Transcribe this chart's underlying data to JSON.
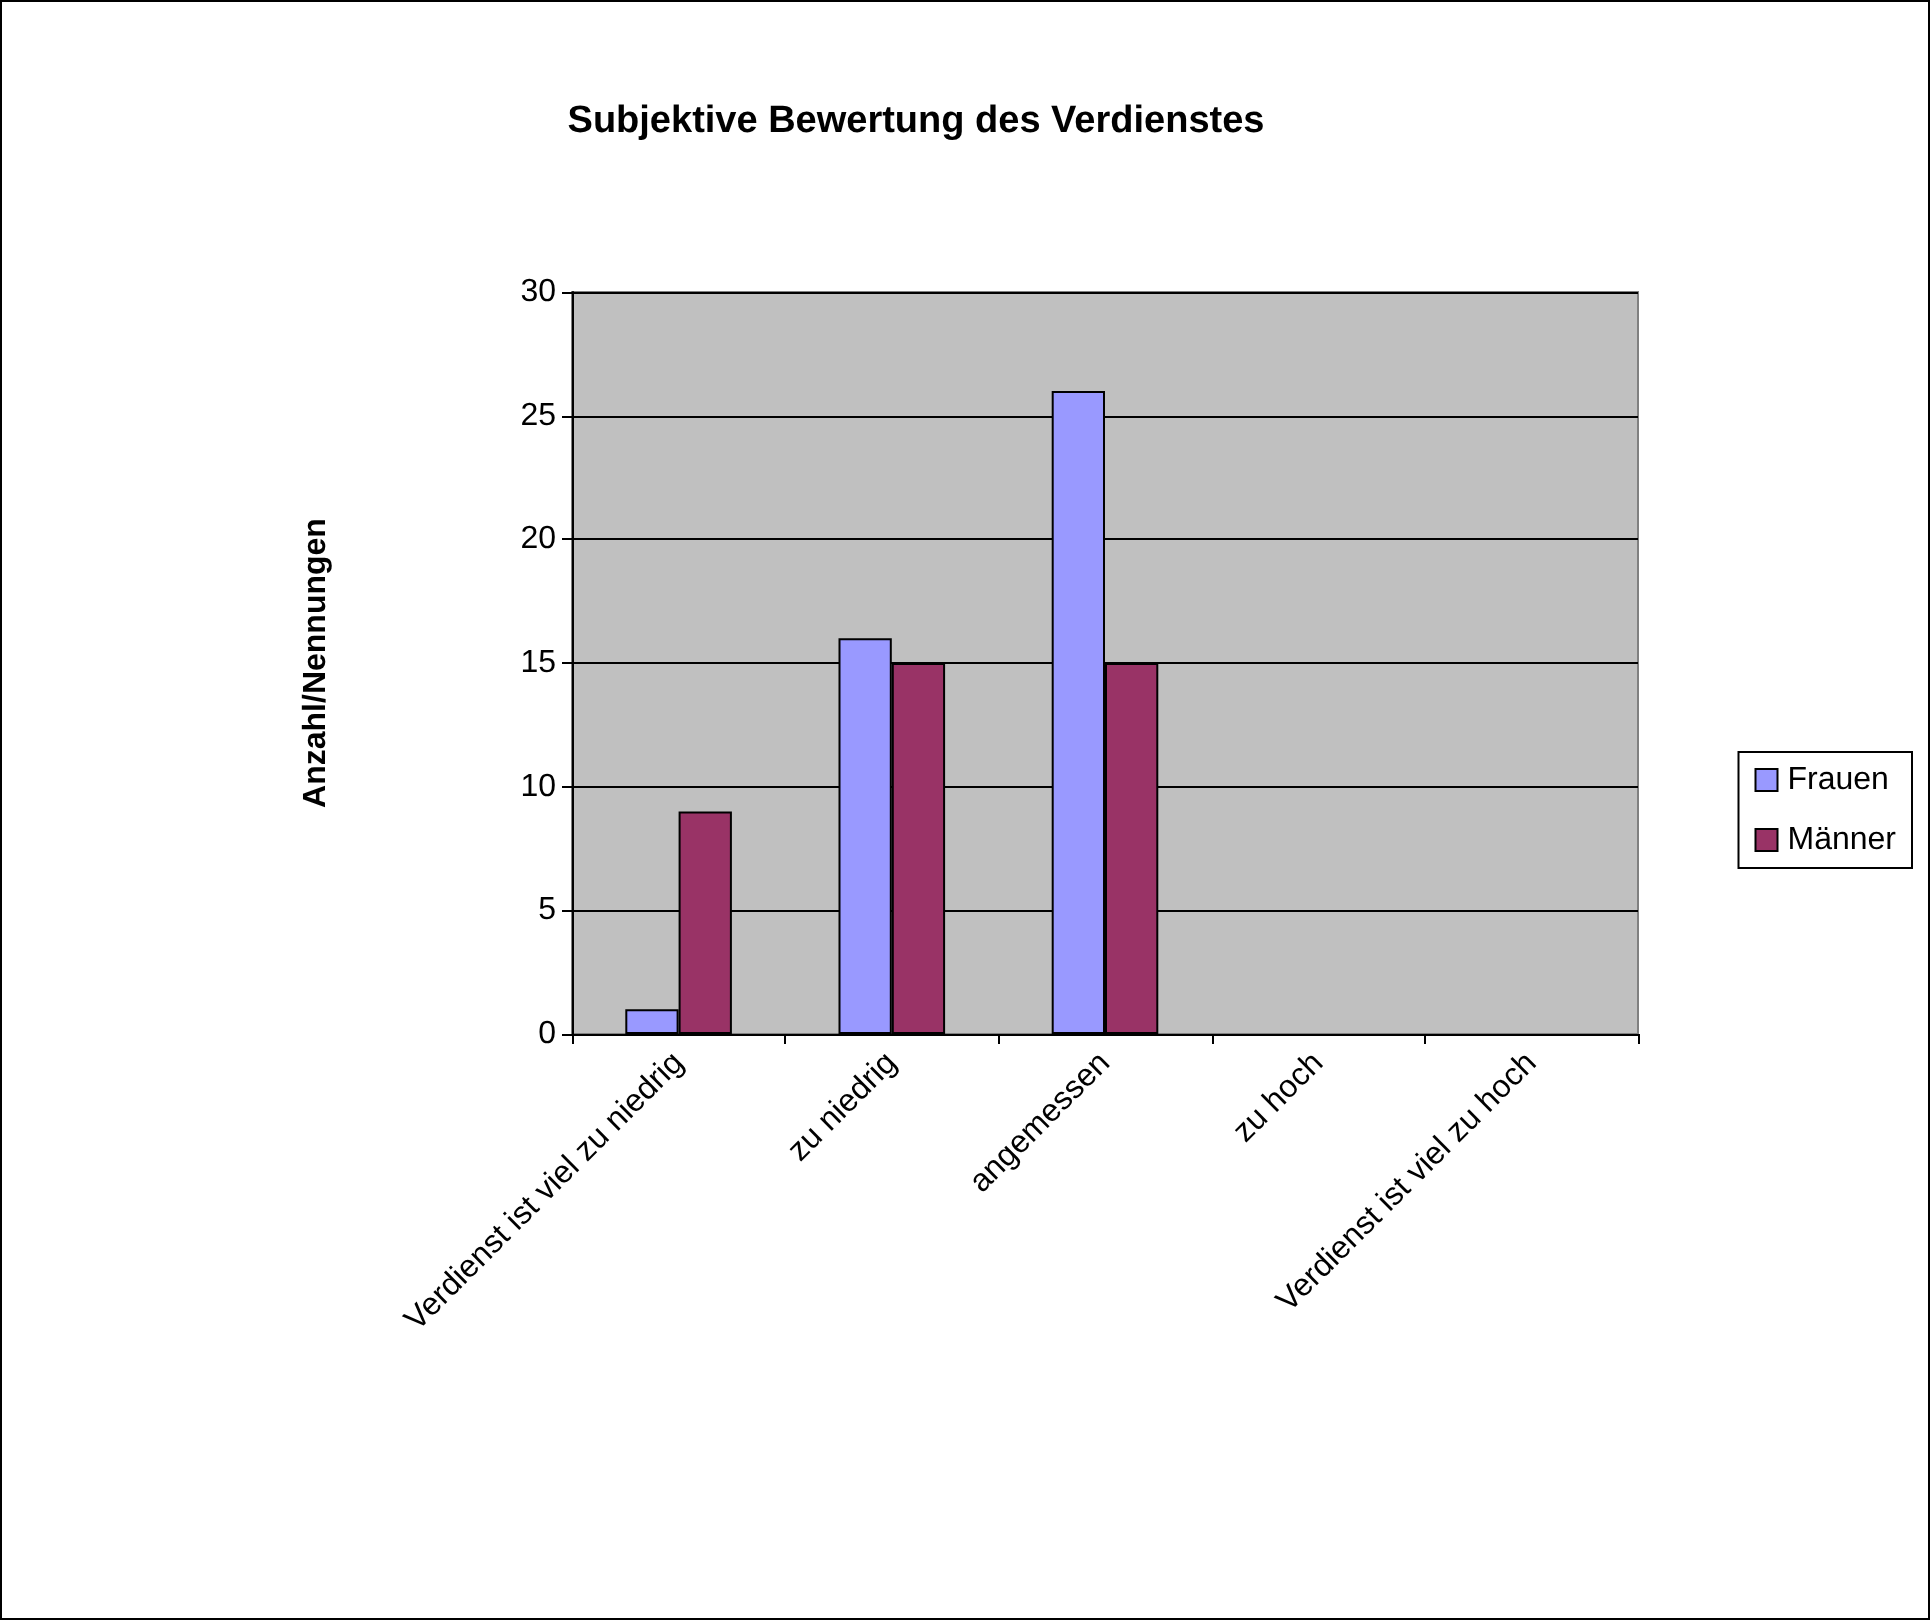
{
  "chart_data": {
    "type": "bar",
    "title": "Subjektive Bewertung des Verdienstes",
    "ylabel": "Anzahl/Nennungen",
    "categories": [
      "Verdienst ist viel zu niedrig",
      "zu niedrig",
      "angemessen",
      "zu hoch",
      "Verdienst ist viel zu hoch"
    ],
    "series": [
      {
        "name": "Frauen",
        "color": "#9999ff",
        "values": [
          1,
          16,
          26,
          0,
          0
        ]
      },
      {
        "name": "Männer",
        "color": "#993366",
        "values": [
          9,
          15,
          15,
          0,
          0
        ]
      }
    ],
    "ylim": [
      0,
      30
    ],
    "yticks": [
      0,
      5,
      10,
      15,
      20,
      25,
      30
    ],
    "grid": "y",
    "legend": "right"
  }
}
